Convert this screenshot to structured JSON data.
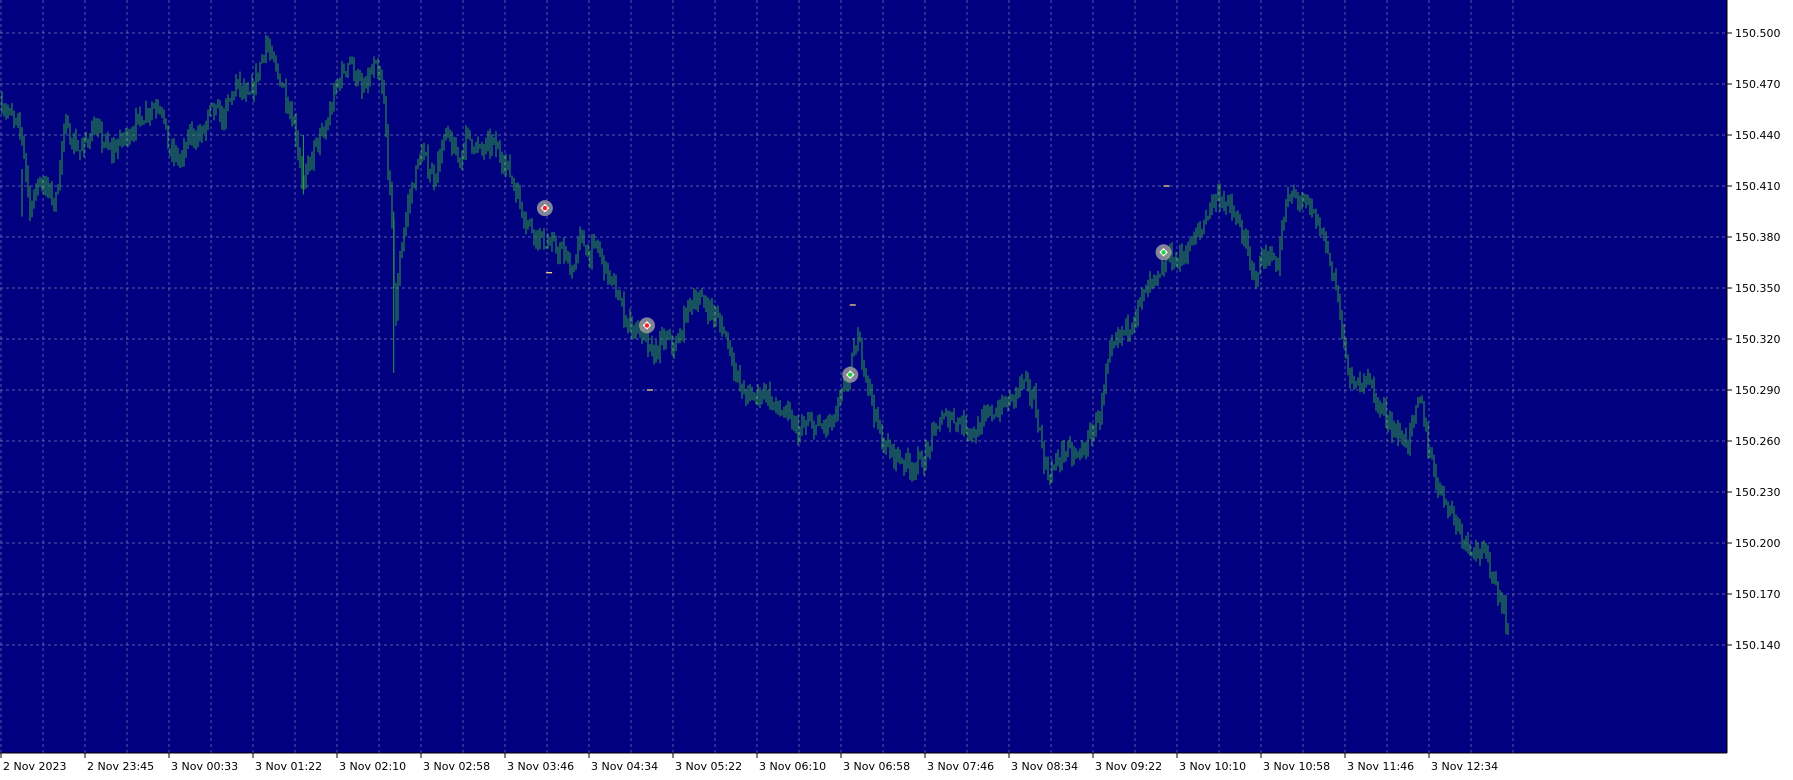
{
  "colors": {
    "background": "#000080",
    "grid": "#c8c8d8",
    "candles": "#2ea03c",
    "axis_panel": "#ffffff",
    "axis_text": "#000000",
    "marker_ring": "#9a9a9a",
    "marker_sell": "#ff2020",
    "marker_buy": "#20d040",
    "level_tick": "#ffd080"
  },
  "chart_data": {
    "type": "candlestick",
    "title": "",
    "xlabel": "",
    "ylabel": "",
    "grid": true,
    "ylim": [
      150.13,
      150.52
    ],
    "y_ticks": [
      "150.500",
      "150.470",
      "150.440",
      "150.410",
      "150.380",
      "150.350",
      "150.320",
      "150.290",
      "150.260",
      "150.230",
      "150.200",
      "150.170",
      "150.140"
    ],
    "x_ticks": [
      "2 Nov 2023",
      "2 Nov 23:45",
      "3 Nov 00:33",
      "3 Nov 01:22",
      "3 Nov 02:10",
      "3 Nov 02:58",
      "3 Nov 03:46",
      "3 Nov 04:34",
      "3 Nov 05:22",
      "3 Nov 06:10",
      "3 Nov 06:58",
      "3 Nov 07:46",
      "3 Nov 08:34",
      "3 Nov 09:22",
      "3 Nov 10:10",
      "3 Nov 10:58",
      "3 Nov 11:46",
      "3 Nov 12:34"
    ],
    "price_path": [
      [
        0.0,
        150.46
      ],
      [
        0.5,
        150.44
      ],
      [
        0.7,
        150.395
      ],
      [
        0.9,
        150.415
      ],
      [
        1.3,
        150.4
      ],
      [
        1.5,
        150.445
      ],
      [
        1.9,
        150.43
      ],
      [
        2.2,
        150.445
      ],
      [
        2.6,
        150.43
      ],
      [
        3.0,
        150.44
      ],
      [
        3.5,
        150.455
      ],
      [
        3.8,
        150.46
      ],
      [
        4.0,
        150.43
      ],
      [
        4.3,
        150.425
      ],
      [
        4.5,
        150.44
      ],
      [
        4.8,
        150.44
      ],
      [
        5.0,
        150.455
      ],
      [
        5.3,
        150.45
      ],
      [
        5.6,
        150.47
      ],
      [
        5.9,
        150.46
      ],
      [
        6.1,
        150.475
      ],
      [
        6.3,
        150.495
      ],
      [
        6.5,
        150.48
      ],
      [
        6.7,
        150.47
      ],
      [
        7.0,
        150.445
      ],
      [
        7.2,
        150.41
      ],
      [
        7.5,
        150.435
      ],
      [
        7.7,
        150.44
      ],
      [
        8.0,
        150.47
      ],
      [
        8.3,
        150.485
      ],
      [
        8.6,
        150.465
      ],
      [
        8.9,
        150.48
      ],
      [
        9.1,
        150.465
      ],
      [
        9.3,
        150.39
      ],
      [
        9.4,
        150.33
      ],
      [
        9.5,
        150.37
      ],
      [
        9.7,
        150.4
      ],
      [
        10.0,
        150.43
      ],
      [
        10.3,
        150.415
      ],
      [
        10.6,
        150.44
      ],
      [
        10.9,
        150.425
      ],
      [
        11.1,
        150.44
      ],
      [
        11.4,
        150.43
      ],
      [
        11.7,
        150.435
      ],
      [
        12.0,
        150.425
      ],
      [
        12.3,
        150.405
      ],
      [
        12.5,
        150.39
      ],
      [
        12.8,
        150.38
      ],
      [
        13.1,
        150.375
      ],
      [
        13.4,
        150.37
      ],
      [
        13.6,
        150.36
      ],
      [
        13.8,
        150.38
      ],
      [
        14.0,
        150.37
      ],
      [
        14.2,
        150.375
      ],
      [
        14.4,
        150.36
      ],
      [
        14.7,
        150.345
      ],
      [
        14.9,
        150.33
      ],
      [
        15.2,
        150.325
      ],
      [
        15.5,
        150.31
      ],
      [
        15.8,
        150.32
      ],
      [
        16.1,
        150.315
      ],
      [
        16.3,
        150.335
      ],
      [
        16.5,
        150.345
      ],
      [
        16.8,
        150.34
      ],
      [
        17.1,
        150.33
      ],
      [
        17.3,
        150.32
      ],
      [
        17.6,
        150.29
      ],
      [
        17.9,
        150.285
      ],
      [
        18.2,
        150.29
      ],
      [
        18.4,
        150.28
      ],
      [
        18.7,
        150.275
      ],
      [
        19.0,
        150.265
      ],
      [
        19.2,
        150.27
      ],
      [
        19.5,
        150.268
      ],
      [
        19.8,
        150.27
      ],
      [
        20.0,
        150.285
      ],
      [
        20.2,
        150.3
      ],
      [
        20.4,
        150.32
      ],
      [
        20.6,
        150.3
      ],
      [
        20.9,
        150.265
      ],
      [
        21.1,
        150.255
      ],
      [
        21.4,
        150.25
      ],
      [
        21.7,
        150.245
      ],
      [
        22.0,
        150.25
      ],
      [
        22.3,
        150.27
      ],
      [
        22.6,
        150.275
      ],
      [
        22.9,
        150.27
      ],
      [
        23.2,
        150.265
      ],
      [
        23.5,
        150.275
      ],
      [
        23.8,
        150.28
      ],
      [
        24.1,
        150.285
      ],
      [
        24.3,
        150.295
      ],
      [
        24.6,
        150.285
      ],
      [
        24.9,
        150.24
      ],
      [
        25.1,
        150.245
      ],
      [
        25.3,
        150.255
      ],
      [
        25.6,
        150.25
      ],
      [
        25.9,
        150.26
      ],
      [
        26.2,
        150.28
      ],
      [
        26.4,
        150.31
      ],
      [
        26.6,
        150.32
      ],
      [
        26.9,
        150.33
      ],
      [
        27.1,
        150.34
      ],
      [
        27.3,
        150.35
      ],
      [
        27.6,
        150.355
      ],
      [
        27.8,
        150.37
      ],
      [
        28.0,
        150.365
      ],
      [
        28.3,
        150.375
      ],
      [
        28.6,
        150.385
      ],
      [
        28.8,
        150.4
      ],
      [
        29.0,
        150.405
      ],
      [
        29.3,
        150.395
      ],
      [
        29.6,
        150.38
      ],
      [
        29.8,
        150.355
      ],
      [
        30.1,
        150.37
      ],
      [
        30.4,
        150.365
      ],
      [
        30.6,
        150.4
      ],
      [
        30.8,
        150.405
      ],
      [
        31.0,
        150.4
      ],
      [
        31.2,
        150.395
      ],
      [
        31.5,
        150.38
      ],
      [
        31.8,
        150.35
      ],
      [
        32.0,
        150.31
      ],
      [
        32.2,
        150.29
      ],
      [
        32.5,
        150.3
      ],
      [
        32.8,
        150.28
      ],
      [
        33.0,
        150.275
      ],
      [
        33.2,
        150.265
      ],
      [
        33.5,
        150.26
      ],
      [
        33.8,
        150.285
      ],
      [
        34.0,
        150.255
      ],
      [
        34.2,
        150.235
      ],
      [
        34.4,
        150.225
      ],
      [
        34.6,
        150.215
      ],
      [
        34.9,
        150.2
      ],
      [
        35.2,
        150.195
      ],
      [
        35.4,
        150.19
      ],
      [
        35.6,
        150.175
      ],
      [
        35.8,
        150.16
      ],
      [
        35.9,
        150.145
      ]
    ],
    "trade_markers": [
      {
        "x": 12.95,
        "y": 150.397,
        "kind": "sell"
      },
      {
        "x": 15.38,
        "y": 150.328,
        "kind": "sell"
      },
      {
        "x": 20.22,
        "y": 150.299,
        "kind": "buy"
      },
      {
        "x": 27.68,
        "y": 150.371,
        "kind": "buy"
      }
    ],
    "level_ticks": [
      {
        "x": 13.05,
        "y": 150.359
      },
      {
        "x": 15.45,
        "y": 150.29
      },
      {
        "x": 20.28,
        "y": 150.34
      },
      {
        "x": 27.75,
        "y": 150.41
      }
    ]
  }
}
